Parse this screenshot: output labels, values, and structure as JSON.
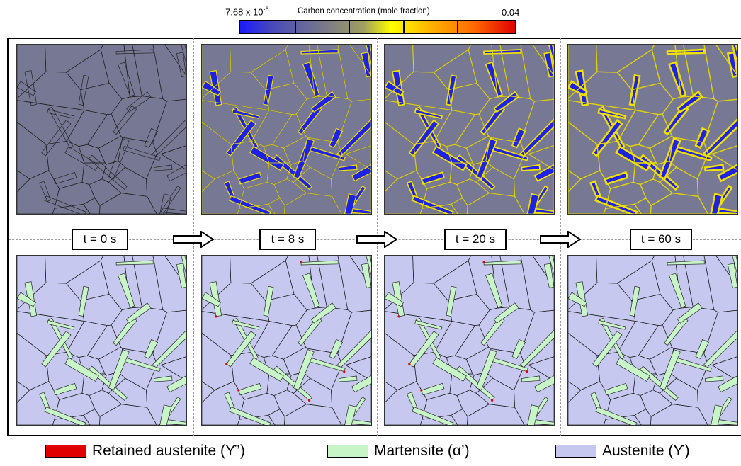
{
  "colorbar": {
    "min_label_base": "7.68 x 10",
    "min_label_exp": "-6",
    "title": "Carbon concentration (mole fraction)",
    "max_label": "0.04",
    "colors": [
      "#1a1aff",
      "#77778a",
      "#ffff00",
      "#ff6a00",
      "#e00000"
    ]
  },
  "times": [
    {
      "label": "t = 0 s"
    },
    {
      "label": "t = 8 s"
    },
    {
      "label": "t = 20 s"
    },
    {
      "label": "t = 60 s"
    }
  ],
  "legend": [
    {
      "label": "Retained austenite (ϒ’)",
      "color": "#e00000"
    },
    {
      "label": "Martensite (α’)",
      "color": "#c8f5c8"
    },
    {
      "label": "Austenite (ϒ)",
      "color": "#c6c8f0"
    }
  ],
  "colors": {
    "grain_gray": "#767894",
    "carbon_blue": "#1e22e6",
    "carbon_yellow": "#f0e000",
    "austenite": "#c6c8f0",
    "martensite": "#c8f5c8",
    "retained": "#e00000"
  }
}
